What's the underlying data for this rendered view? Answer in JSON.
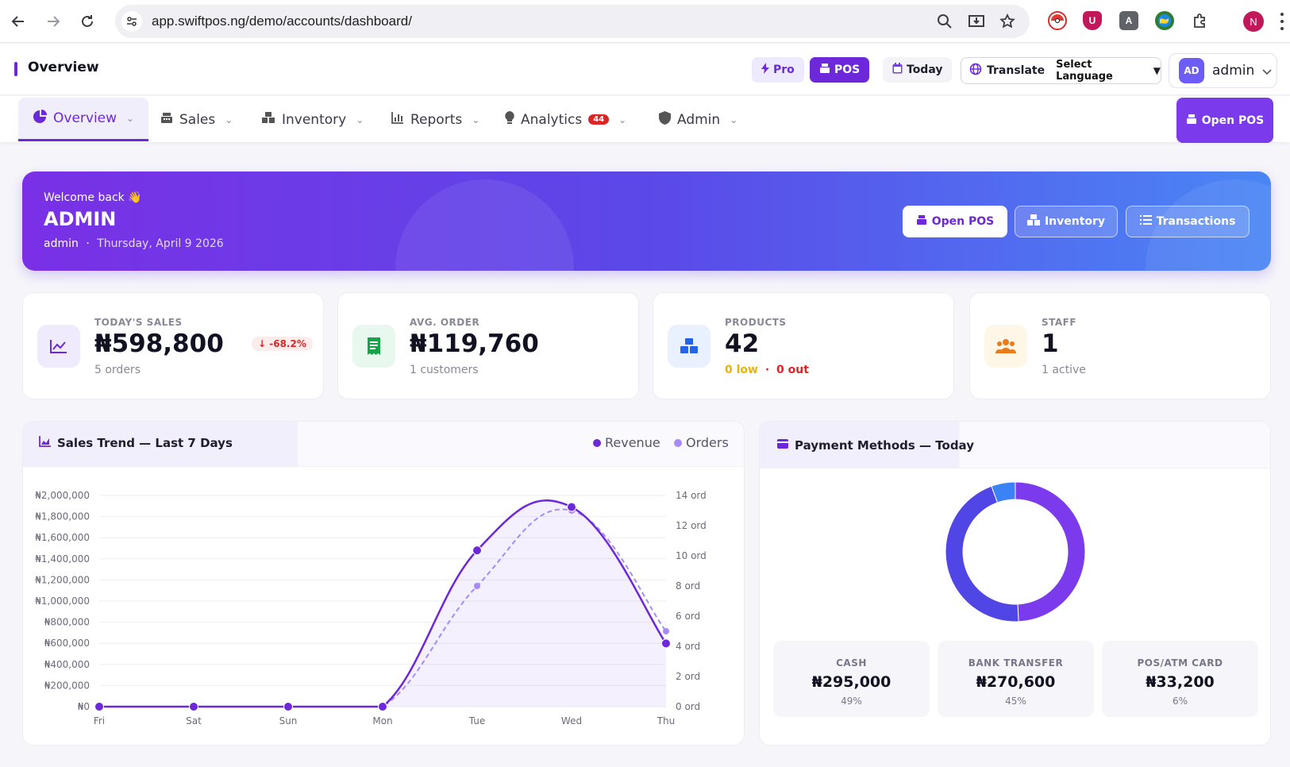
{
  "browser": {
    "url": "app.swiftpos.ng/demo/accounts/dashboard/",
    "profile_initial": "N",
    "extension_letter": "A"
  },
  "header": {
    "title": "Overview",
    "pro_label": "Pro",
    "pos_label": "POS",
    "today_label": "Today",
    "translate_label": "Translate",
    "language_select": "Select Language",
    "user_initials": "AD",
    "user_name": "admin"
  },
  "nav": {
    "items": [
      {
        "label": "Overview",
        "icon": "pie-chart-icon",
        "active": true
      },
      {
        "label": "Sales",
        "icon": "cash-register-icon"
      },
      {
        "label": "Inventory",
        "icon": "boxes-icon"
      },
      {
        "label": "Reports",
        "icon": "bar-chart-icon"
      },
      {
        "label": "Analytics",
        "icon": "lightbulb-icon",
        "badge": "44"
      },
      {
        "label": "Admin",
        "icon": "shield-icon"
      }
    ],
    "open_pos_label": "Open POS"
  },
  "banner": {
    "welcome": "Welcome back 👋",
    "name": "ADMIN",
    "username": "admin",
    "separator": "·",
    "date": "Thursday, April 9 2026",
    "buttons": {
      "open_pos": "Open POS",
      "inventory": "Inventory",
      "transactions": "Transactions"
    }
  },
  "stats": [
    {
      "label": "TODAY'S SALES",
      "value": "₦598,800",
      "sub": "5 orders",
      "delta": "↓ -68.2%",
      "icon": "trend-chart-icon"
    },
    {
      "label": "AVG. ORDER",
      "value": "₦119,760",
      "sub": "1 customers",
      "icon": "receipt-icon"
    },
    {
      "label": "PRODUCTS",
      "value": "42",
      "low": "0 low",
      "dot": "·",
      "out": "0 out",
      "icon": "boxes-icon"
    },
    {
      "label": "STAFF",
      "value": "1",
      "sub": "1 active",
      "icon": "users-icon"
    }
  ],
  "colors": {
    "accent": "#6d28d9",
    "revenue": "#6d28d9",
    "orders": "#a78bfa",
    "cash": "#7c3aed",
    "bank": "#4f46e5",
    "card": "#3b82f6"
  },
  "chart_data": [
    {
      "type": "line",
      "title": "Sales Trend — Last 7 Days",
      "categories": [
        "Fri",
        "Sat",
        "Sun",
        "Mon",
        "Tue",
        "Wed",
        "Thu"
      ],
      "series": [
        {
          "name": "Revenue",
          "axis": "left",
          "values": [
            0,
            0,
            0,
            0,
            1480000,
            1890000,
            598800
          ]
        },
        {
          "name": "Orders",
          "axis": "right",
          "values": [
            0,
            0,
            0,
            0,
            8,
            13,
            5
          ]
        }
      ],
      "y_left_ticks": [
        "₦0",
        "₦200,000",
        "₦400,000",
        "₦600,000",
        "₦800,000",
        "₦1,000,000",
        "₦1,200,000",
        "₦1,400,000",
        "₦1,600,000",
        "₦1,800,000",
        "₦2,000,000"
      ],
      "y_right_ticks": [
        "0 ord",
        "2 ord",
        "4 ord",
        "6 ord",
        "8 ord",
        "10 ord",
        "12 ord",
        "14 ord"
      ],
      "ylim_left": [
        0,
        2000000
      ],
      "ylim_right": [
        0,
        14
      ],
      "legend": "top-right",
      "grid": true
    },
    {
      "type": "pie",
      "title": "Payment Methods — Today",
      "labels": [
        "CASH",
        "BANK TRANSFER",
        "POS/ATM CARD"
      ],
      "values": [
        295000,
        270600,
        33200
      ],
      "display_values": [
        "₦295,000",
        "₦270,600",
        "₦33,200"
      ],
      "percents": [
        "49%",
        "45%",
        "6%"
      ]
    }
  ]
}
